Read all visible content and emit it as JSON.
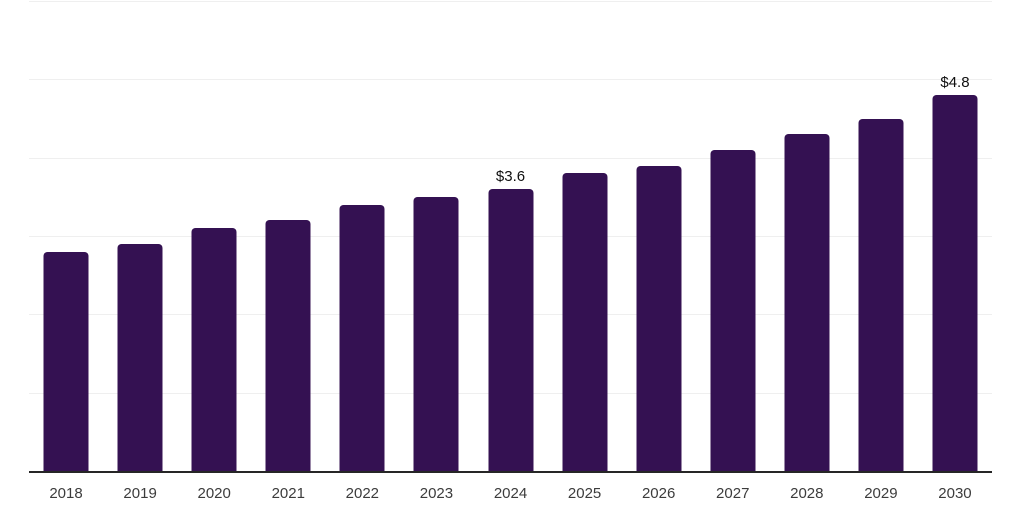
{
  "chart_data": {
    "type": "bar",
    "title": "",
    "xlabel": "",
    "ylabel": "",
    "categories": [
      "2018",
      "2019",
      "2020",
      "2021",
      "2022",
      "2023",
      "2024",
      "2025",
      "2026",
      "2027",
      "2028",
      "2029",
      "2030"
    ],
    "values": [
      2.8,
      2.9,
      3.1,
      3.2,
      3.4,
      3.5,
      3.6,
      3.8,
      3.9,
      4.1,
      4.3,
      4.5,
      4.8
    ],
    "annotations": [
      {
        "category": "2024",
        "label": "$3.6"
      },
      {
        "category": "2030",
        "label": "$4.8"
      }
    ],
    "ylim": [
      0,
      6
    ],
    "grid_step": 1,
    "grid": "horizontal",
    "legend": "none",
    "y_axis_labels_visible": false
  },
  "colors": {
    "bar": "#341152",
    "gridline": "#efefef",
    "axis_line": "#262626",
    "tick_label": "#3c3c3c",
    "value_label": "#0f0f0f",
    "background": "#ffffff"
  }
}
